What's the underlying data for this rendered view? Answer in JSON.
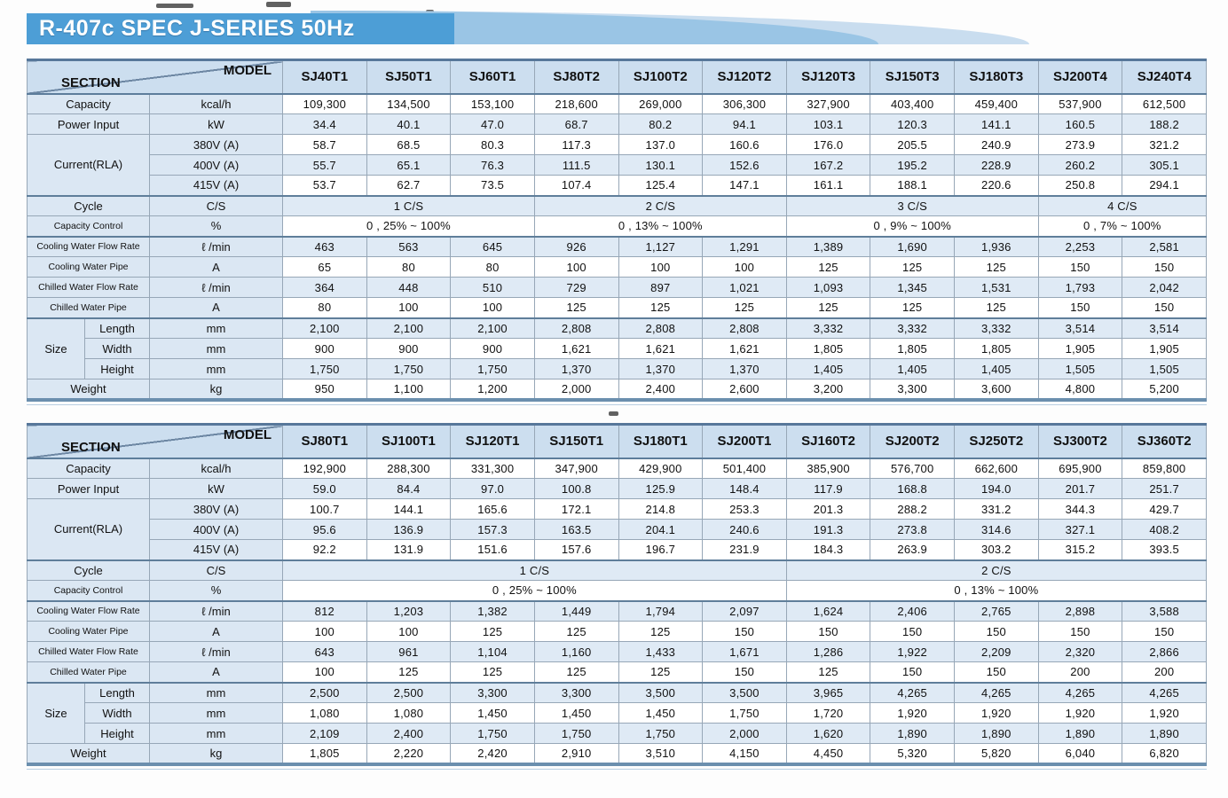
{
  "title": "R-407c SPEC J-SERIES 50Hz",
  "header": {
    "section_label": "SECTION",
    "model_label": "MODEL"
  },
  "colors": {
    "banner_blue": "#4d9ed6",
    "swoosh_mid": "#9ac5e5",
    "swoosh_light": "#c9ddef",
    "header_bg": "#ccdeef",
    "label_col_bg": "#dbe7f3",
    "stripe_blue": "#dfeaf5",
    "thick_border": "#57779a",
    "thin_border": "#97a7b7"
  },
  "tables": [
    {
      "models": [
        "SJ40T1",
        "SJ50T1",
        "SJ60T1",
        "SJ80T2",
        "SJ100T2",
        "SJ120T2",
        "SJ120T3",
        "SJ150T3",
        "SJ180T3",
        "SJ200T4",
        "SJ240T4"
      ],
      "rows": [
        {
          "label": "Capacity",
          "unit": "kcal/h",
          "values": [
            "109,300",
            "134,500",
            "153,100",
            "218,600",
            "269,000",
            "306,300",
            "327,900",
            "403,400",
            "459,400",
            "537,900",
            "612,500"
          ]
        },
        {
          "label": "Power Input",
          "unit": "kW",
          "values": [
            "34.4",
            "40.1",
            "47.0",
            "68.7",
            "80.2",
            "94.1",
            "103.1",
            "120.3",
            "141.1",
            "160.5",
            "188.2"
          ]
        },
        {
          "label": "Current(RLA)",
          "sub": [
            {
              "unit": "380V (A)",
              "values": [
                "58.7",
                "68.5",
                "80.3",
                "117.3",
                "137.0",
                "160.6",
                "176.0",
                "205.5",
                "240.9",
                "273.9",
                "321.2"
              ]
            },
            {
              "unit": "400V (A)",
              "values": [
                "55.7",
                "65.1",
                "76.3",
                "111.5",
                "130.1",
                "152.6",
                "167.2",
                "195.2",
                "228.9",
                "260.2",
                "305.1"
              ]
            },
            {
              "unit": "415V (A)",
              "values": [
                "53.7",
                "62.7",
                "73.5",
                "107.4",
                "125.4",
                "147.1",
                "161.1",
                "188.1",
                "220.6",
                "250.8",
                "294.1"
              ]
            }
          ]
        },
        {
          "label": "Cycle",
          "unit": "C/S",
          "sep": true,
          "merged": [
            {
              "text": "1 C/S",
              "span": 3
            },
            {
              "text": "2 C/S",
              "span": 3
            },
            {
              "text": "3 C/S",
              "span": 3
            },
            {
              "text": "4 C/S",
              "span": 2
            }
          ]
        },
        {
          "label": "Capacity Control",
          "unit": "%",
          "merged": [
            {
              "text": "0 , 25% ~ 100%",
              "span": 3
            },
            {
              "text": "0 , 13% ~ 100%",
              "span": 3
            },
            {
              "text": "0 , 9% ~ 100%",
              "span": 3
            },
            {
              "text": "0 , 7% ~ 100%",
              "span": 2
            }
          ]
        },
        {
          "label": "Cooling Water Flow Rate",
          "unit": "ℓ /min",
          "sep": true,
          "values": [
            "463",
            "563",
            "645",
            "926",
            "1,127",
            "1,291",
            "1,389",
            "1,690",
            "1,936",
            "2,253",
            "2,581"
          ]
        },
        {
          "label": "Cooling Water Pipe",
          "unit": "A",
          "values": [
            "65",
            "80",
            "80",
            "100",
            "100",
            "100",
            "125",
            "125",
            "125",
            "150",
            "150"
          ]
        },
        {
          "label": "Chilled Water Flow Rate",
          "unit": "ℓ /min",
          "values": [
            "364",
            "448",
            "510",
            "729",
            "897",
            "1,021",
            "1,093",
            "1,345",
            "1,531",
            "1,793",
            "2,042"
          ]
        },
        {
          "label": "Chilled Water Pipe",
          "unit": "A",
          "values": [
            "80",
            "100",
            "100",
            "125",
            "125",
            "125",
            "125",
            "125",
            "125",
            "150",
            "150"
          ]
        },
        {
          "label": "Size",
          "sep": true,
          "sub_rows": [
            {
              "name": "Length",
              "unit": "mm",
              "values": [
                "2,100",
                "2,100",
                "2,100",
                "2,808",
                "2,808",
                "2,808",
                "3,332",
                "3,332",
                "3,332",
                "3,514",
                "3,514"
              ]
            },
            {
              "name": "Width",
              "unit": "mm",
              "values": [
                "900",
                "900",
                "900",
                "1,621",
                "1,621",
                "1,621",
                "1,805",
                "1,805",
                "1,805",
                "1,905",
                "1,905"
              ]
            },
            {
              "name": "Height",
              "unit": "mm",
              "values": [
                "1,750",
                "1,750",
                "1,750",
                "1,370",
                "1,370",
                "1,370",
                "1,405",
                "1,405",
                "1,405",
                "1,505",
                "1,505"
              ]
            }
          ]
        },
        {
          "label": "Weight",
          "unit": "kg",
          "values": [
            "950",
            "1,100",
            "1,200",
            "2,000",
            "2,400",
            "2,600",
            "3,200",
            "3,300",
            "3,600",
            "4,800",
            "5,200"
          ]
        }
      ]
    },
    {
      "models": [
        "SJ80T1",
        "SJ100T1",
        "SJ120T1",
        "SJ150T1",
        "SJ180T1",
        "SJ200T1",
        "SJ160T2",
        "SJ200T2",
        "SJ250T2",
        "SJ300T2",
        "SJ360T2"
      ],
      "rows": [
        {
          "label": "Capacity",
          "unit": "kcal/h",
          "values": [
            "192,900",
            "288,300",
            "331,300",
            "347,900",
            "429,900",
            "501,400",
            "385,900",
            "576,700",
            "662,600",
            "695,900",
            "859,800"
          ]
        },
        {
          "label": "Power Input",
          "unit": "kW",
          "values": [
            "59.0",
            "84.4",
            "97.0",
            "100.8",
            "125.9",
            "148.4",
            "117.9",
            "168.8",
            "194.0",
            "201.7",
            "251.7"
          ]
        },
        {
          "label": "Current(RLA)",
          "sub": [
            {
              "unit": "380V (A)",
              "values": [
                "100.7",
                "144.1",
                "165.6",
                "172.1",
                "214.8",
                "253.3",
                "201.3",
                "288.2",
                "331.2",
                "344.3",
                "429.7"
              ]
            },
            {
              "unit": "400V (A)",
              "values": [
                "95.6",
                "136.9",
                "157.3",
                "163.5",
                "204.1",
                "240.6",
                "191.3",
                "273.8",
                "314.6",
                "327.1",
                "408.2"
              ]
            },
            {
              "unit": "415V (A)",
              "values": [
                "92.2",
                "131.9",
                "151.6",
                "157.6",
                "196.7",
                "231.9",
                "184.3",
                "263.9",
                "303.2",
                "315.2",
                "393.5"
              ]
            }
          ]
        },
        {
          "label": "Cycle",
          "unit": "C/S",
          "sep": true,
          "merged": [
            {
              "text": "1 C/S",
              "span": 6
            },
            {
              "text": "2 C/S",
              "span": 5
            }
          ]
        },
        {
          "label": "Capacity Control",
          "unit": "%",
          "merged": [
            {
              "text": "0 , 25% ~ 100%",
              "span": 6
            },
            {
              "text": "0 , 13% ~ 100%",
              "span": 5
            }
          ]
        },
        {
          "label": "Cooling Water Flow Rate",
          "unit": "ℓ /min",
          "sep": true,
          "values": [
            "812",
            "1,203",
            "1,382",
            "1,449",
            "1,794",
            "2,097",
            "1,624",
            "2,406",
            "2,765",
            "2,898",
            "3,588"
          ]
        },
        {
          "label": "Cooling Water Pipe",
          "unit": "A",
          "values": [
            "100",
            "100",
            "125",
            "125",
            "125",
            "150",
            "150",
            "150",
            "150",
            "150",
            "150"
          ]
        },
        {
          "label": "Chilled Water Flow Rate",
          "unit": "ℓ /min",
          "values": [
            "643",
            "961",
            "1,104",
            "1,160",
            "1,433",
            "1,671",
            "1,286",
            "1,922",
            "2,209",
            "2,320",
            "2,866"
          ]
        },
        {
          "label": "Chilled Water Pipe",
          "unit": "A",
          "values": [
            "100",
            "125",
            "125",
            "125",
            "125",
            "150",
            "125",
            "150",
            "150",
            "200",
            "200"
          ]
        },
        {
          "label": "Size",
          "sep": true,
          "sub_rows": [
            {
              "name": "Length",
              "unit": "mm",
              "values": [
                "2,500",
                "2,500",
                "3,300",
                "3,300",
                "3,500",
                "3,500",
                "3,965",
                "4,265",
                "4,265",
                "4,265",
                "4,265"
              ]
            },
            {
              "name": "Width",
              "unit": "mm",
              "values": [
                "1,080",
                "1,080",
                "1,450",
                "1,450",
                "1,450",
                "1,750",
                "1,720",
                "1,920",
                "1,920",
                "1,920",
                "1,920"
              ]
            },
            {
              "name": "Height",
              "unit": "mm",
              "values": [
                "2,109",
                "2,400",
                "1,750",
                "1,750",
                "1,750",
                "2,000",
                "1,620",
                "1,890",
                "1,890",
                "1,890",
                "1,890"
              ]
            }
          ]
        },
        {
          "label": "Weight",
          "unit": "kg",
          "values": [
            "1,805",
            "2,220",
            "2,420",
            "2,910",
            "3,510",
            "4,150",
            "4,450",
            "5,320",
            "5,820",
            "6,040",
            "6,820"
          ]
        }
      ]
    }
  ]
}
